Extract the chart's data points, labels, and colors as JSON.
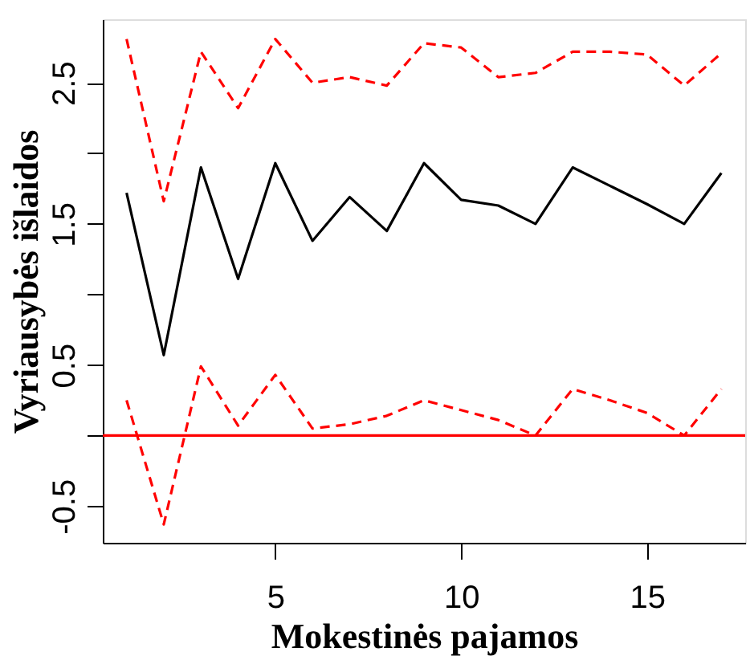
{
  "chart_data": {
    "type": "line",
    "xlabel": "Mokestinės pajamos",
    "ylabel": "Vyriausybės išlaidos",
    "x": [
      1,
      2,
      3,
      4,
      5,
      6,
      7,
      8,
      9,
      10,
      11,
      12,
      13,
      14,
      15,
      16,
      17
    ],
    "series": [
      {
        "color": "#000000",
        "line_style": "solid",
        "values": [
          1.72,
          0.57,
          1.9,
          1.11,
          1.93,
          1.38,
          1.69,
          1.45,
          1.93,
          1.67,
          1.63,
          1.5,
          1.9,
          1.77,
          1.64,
          1.5,
          1.86
        ]
      },
      {
        "color": "#ff0000",
        "line_style": "dashed",
        "values": [
          2.81,
          1.66,
          2.72,
          2.32,
          2.81,
          2.5,
          2.54,
          2.48,
          2.78,
          2.75,
          2.54,
          2.57,
          2.72,
          2.72,
          2.7,
          2.48,
          2.71
        ]
      },
      {
        "color": "#ff0000",
        "line_style": "dashed",
        "values": [
          0.25,
          -0.63,
          0.49,
          0.07,
          0.43,
          0.05,
          0.08,
          0.14,
          0.25,
          0.18,
          0.11,
          0.0,
          0.33,
          0.25,
          0.16,
          0.0,
          0.33
        ]
      }
    ],
    "xlim": [
      0.36,
      17.64
    ],
    "ylim": [
      -0.76,
      2.95
    ],
    "xticks": [
      5,
      10,
      15
    ],
    "yticks": [
      {
        "value": -0.5,
        "label": "-0.5"
      },
      {
        "value": 0,
        "label": null
      },
      {
        "value": 0.5,
        "label": "0.5"
      },
      {
        "value": 1,
        "label": null
      },
      {
        "value": 1.5,
        "label": "1.5"
      },
      {
        "value": 2,
        "label": null
      },
      {
        "value": 2.5,
        "label": "2.5"
      }
    ],
    "ref_lines": [
      {
        "axis": "y",
        "value": 0,
        "color": "#ff0000",
        "line_style": "solid"
      }
    ],
    "grid": false,
    "marker": "none"
  }
}
